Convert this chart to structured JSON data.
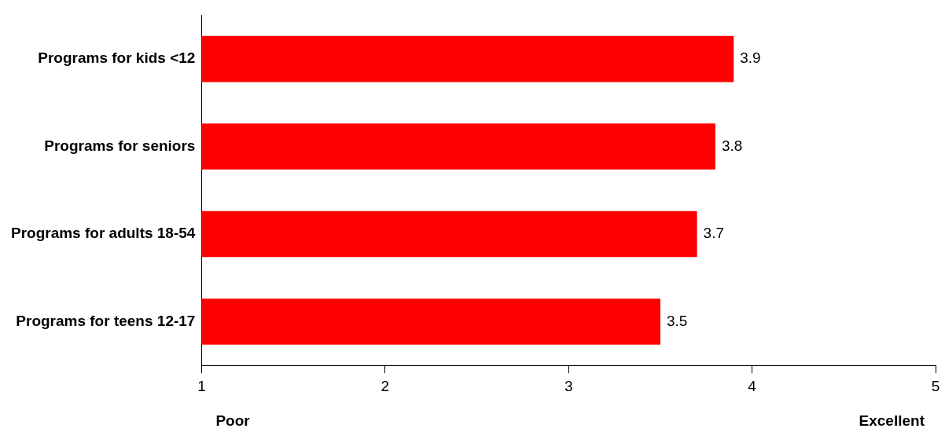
{
  "chart_data": {
    "type": "bar",
    "orientation": "horizontal",
    "categories": [
      "Programs for kids <12",
      "Programs for seniors",
      "Programs for adults 18-54",
      "Programs for teens 12-17"
    ],
    "values": [
      3.9,
      3.8,
      3.7,
      3.5
    ],
    "color": "#ff0000",
    "xlim": [
      1,
      5
    ],
    "xticks": [
      1,
      2,
      3,
      4,
      5
    ],
    "data_labels": true,
    "grid": false,
    "annotations": [
      "Poor",
      "Excellent"
    ]
  }
}
